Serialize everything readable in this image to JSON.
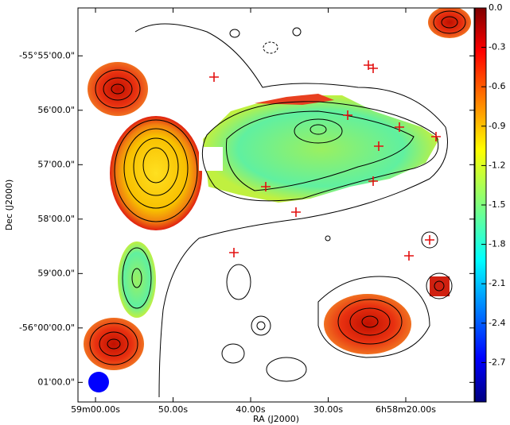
{
  "chart_data": {
    "type": "image",
    "xlabel": "RA (J2000)",
    "ylabel": "Dec (J2000)",
    "xlim": [
      62.26,
      11.18
    ],
    "xticks": [
      {
        "value": 60,
        "label": "59m00.00s"
      },
      {
        "value": 50,
        "label": "50.00s"
      },
      {
        "value": 40,
        "label": "40.00s"
      },
      {
        "value": 30,
        "label": "30.00s"
      },
      {
        "value": 20,
        "label": "6h58m20.00s"
      }
    ],
    "ylim": [
      -3361.36,
      -3354.12
    ],
    "yticks": [
      {
        "value": -3355,
        "label": "-55°55'00.0\""
      },
      {
        "value": -3356,
        "label": "56'00.0\""
      },
      {
        "value": -3357,
        "label": "57'00.0\""
      },
      {
        "value": -3358,
        "label": "58'00.0\""
      },
      {
        "value": -3359,
        "label": "59'00.0\""
      },
      {
        "value": -3360,
        "label": "-56°00'00.0\""
      },
      {
        "value": -3361,
        "label": "01'00.0\""
      }
    ],
    "colormap": "jet",
    "clim": [
      -3.0,
      0.0
    ],
    "cticks": [
      {
        "value": 0,
        "label": "0.0"
      },
      -0.3,
      -0.6,
      -0.9,
      -1.2,
      -1.5,
      -1.8,
      -2.1,
      -2.4,
      -2.7
    ]
  }
}
